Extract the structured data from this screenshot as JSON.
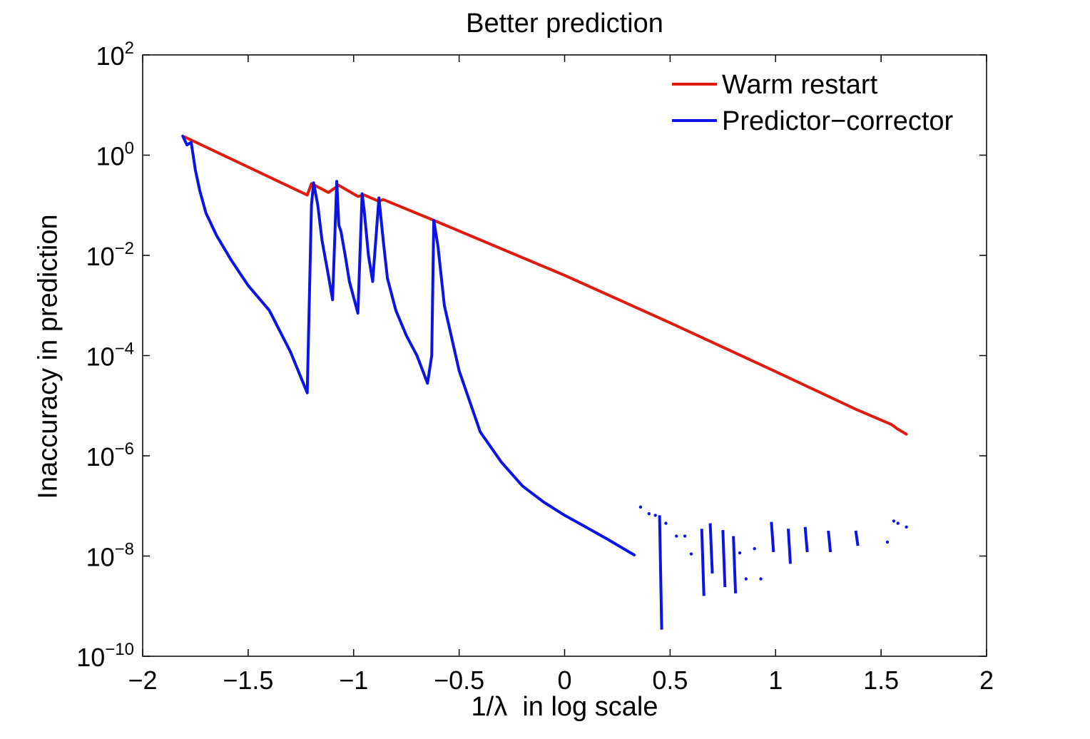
{
  "chart_data": {
    "type": "line",
    "title": "Better prediction",
    "xlabel": "1/λ  in log scale",
    "ylabel": "Inaccuracy in prediction",
    "xlim": [
      -2,
      2
    ],
    "ylim_exponents": [
      -10,
      2
    ],
    "yscale": "log",
    "grid": false,
    "legend_position": "top-right",
    "x_ticks": [
      "−2",
      "−1.5",
      "−1",
      "−0.5",
      "0",
      "0.5",
      "1",
      "1.5",
      "2"
    ],
    "y_ticks": [
      {
        "base": "10",
        "exp": "−10"
      },
      {
        "base": "10",
        "exp": "−8"
      },
      {
        "base": "10",
        "exp": "−6"
      },
      {
        "base": "10",
        "exp": "−4"
      },
      {
        "base": "10",
        "exp": "−2"
      },
      {
        "base": "10",
        "exp": "0"
      },
      {
        "base": "10",
        "exp": "2"
      }
    ],
    "series": [
      {
        "name": "Warm restart",
        "color": "#dd1c0f",
        "style": "solid",
        "points": [
          [
            -1.8,
            2.3
          ],
          [
            -1.22,
            0.16
          ],
          [
            -1.2,
            0.27
          ],
          [
            -1.12,
            0.18
          ],
          [
            -1.07,
            0.25
          ],
          [
            -0.98,
            0.15
          ],
          [
            -0.95,
            0.16
          ],
          [
            -0.88,
            0.12
          ],
          [
            -0.86,
            0.13
          ],
          [
            -0.62,
            0.05
          ],
          [
            0.0,
            0.004
          ],
          [
            0.5,
            0.00045
          ],
          [
            1.0,
            4.8e-05
          ],
          [
            1.38,
            8.5e-06
          ],
          [
            1.55,
            4.2e-06
          ],
          [
            1.58,
            3.4e-06
          ],
          [
            1.62,
            2.7e-06
          ]
        ]
      },
      {
        "name": "Predictor−corrector",
        "color": "#0a14e6",
        "style": "solid",
        "points": [
          [
            -1.81,
            2.4
          ],
          [
            -1.79,
            1.6
          ],
          [
            -1.77,
            1.8
          ],
          [
            -1.75,
            0.5
          ],
          [
            -1.73,
            0.2
          ],
          [
            -1.7,
            0.07
          ],
          [
            -1.65,
            0.025
          ],
          [
            -1.58,
            0.008
          ],
          [
            -1.5,
            0.0025
          ],
          [
            -1.4,
            0.0008
          ],
          [
            -1.3,
            0.00012
          ],
          [
            -1.22,
            1.8e-05
          ],
          [
            -1.2,
            0.1
          ],
          [
            -1.19,
            0.28
          ],
          [
            -1.17,
            0.1
          ],
          [
            -1.15,
            0.02
          ],
          [
            -1.12,
            0.004
          ],
          [
            -1.1,
            0.0013
          ],
          [
            -1.08,
            0.3
          ],
          [
            -1.07,
            0.04
          ],
          [
            -1.06,
            0.03
          ],
          [
            -1.04,
            0.01
          ],
          [
            -1.02,
            0.003
          ],
          [
            -0.98,
            0.0007
          ],
          [
            -0.96,
            0.17
          ],
          [
            -0.95,
            0.08
          ],
          [
            -0.93,
            0.01
          ],
          [
            -0.91,
            0.003
          ],
          [
            -0.88,
            0.14
          ],
          [
            -0.86,
            0.02
          ],
          [
            -0.84,
            0.0035
          ],
          [
            -0.8,
            0.0008
          ],
          [
            -0.75,
            0.00025
          ],
          [
            -0.7,
            0.0001
          ],
          [
            -0.65,
            2.8e-05
          ],
          [
            -0.63,
            0.0001
          ],
          [
            -0.62,
            0.05
          ],
          [
            -0.6,
            0.015
          ],
          [
            -0.57,
            0.001
          ],
          [
            -0.5,
            5e-05
          ],
          [
            -0.4,
            3e-06
          ],
          [
            -0.3,
            7.5e-07
          ],
          [
            -0.2,
            2.5e-07
          ],
          [
            -0.1,
            1.2e-07
          ],
          [
            0.0,
            6.5e-08
          ],
          [
            0.1,
            3.8e-08
          ],
          [
            0.2,
            2.2e-08
          ],
          [
            0.33,
            1.05e-08
          ]
        ],
        "fragments": [
          {
            "x": 0.36,
            "y": [
              9.5e-08,
              9.5e-08
            ]
          },
          {
            "x": 0.4,
            "y": [
              7e-08,
              7e-08
            ]
          },
          {
            "x": 0.43,
            "y": [
              6.5e-08,
              6.5e-08
            ]
          },
          {
            "x": 0.45,
            "y": [
              6.5e-08,
              3.4e-10
            ]
          },
          {
            "x": 0.48,
            "y": [
              4.5e-08,
              4.5e-08
            ]
          },
          {
            "x": 0.53,
            "y": [
              2.5e-08,
              2.5e-08
            ]
          },
          {
            "x": 0.57,
            "y": [
              2.5e-08,
              2.5e-08
            ]
          },
          {
            "x": 0.6,
            "y": [
              1.1e-08,
              1.1e-08
            ]
          },
          {
            "x": 0.65,
            "y": [
              3.5e-08,
              1.6e-09
            ]
          },
          {
            "x": 0.69,
            "y": [
              4.5e-08,
              4.5e-09
            ]
          },
          {
            "x": 0.75,
            "y": [
              3.3e-08,
              2.4e-09
            ]
          },
          {
            "x": 0.8,
            "y": [
              2.5e-08,
              1.8e-09
            ]
          },
          {
            "x": 0.83,
            "y": [
              1.15e-08,
              1.15e-08
            ]
          },
          {
            "x": 0.86,
            "y": [
              3.5e-09,
              3.5e-09
            ]
          },
          {
            "x": 0.9,
            "y": [
              1.4e-08,
              1.4e-08
            ]
          },
          {
            "x": 0.93,
            "y": [
              3.5e-09,
              3.5e-09
            ]
          },
          {
            "x": 0.98,
            "y": [
              4.8e-08,
              1.2e-08
            ]
          },
          {
            "x": 1.06,
            "y": [
              3.5e-08,
              7e-09
            ]
          },
          {
            "x": 1.14,
            "y": [
              3.8e-08,
              1.2e-08
            ]
          },
          {
            "x": 1.25,
            "y": [
              3.2e-08,
              1.2e-08
            ]
          },
          {
            "x": 1.38,
            "y": [
              3.2e-08,
              1.6e-08
            ]
          },
          {
            "x": 1.53,
            "y": [
              1.9e-08,
              1.9e-08
            ]
          },
          {
            "x": 1.56,
            "y": [
              5e-08,
              5e-08
            ]
          },
          {
            "x": 1.58,
            "y": [
              4.5e-08,
              4.5e-08
            ]
          },
          {
            "x": 1.62,
            "y": [
              3.8e-08,
              3.8e-08
            ]
          }
        ]
      }
    ]
  }
}
